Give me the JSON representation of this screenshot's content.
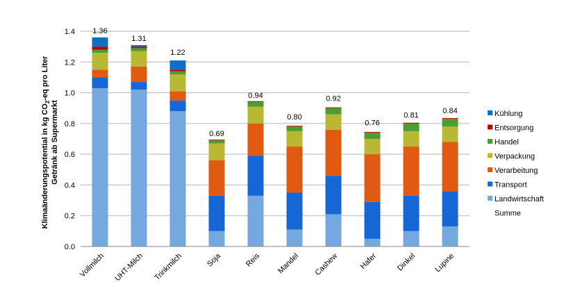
{
  "chart_data": {
    "type": "bar",
    "stacked": true,
    "title": "",
    "ylabel_line1": "Klimaänderungspotential in kg CO",
    "ylabel_sub": "2",
    "ylabel_line1_end": "-eq pro Liter",
    "ylabel_line2": "Getränk ab Supermarkt",
    "xlabel": "",
    "ylim": [
      0,
      1.4
    ],
    "yticks": [
      "0.0",
      "0.2",
      "0.4",
      "0.6",
      "0.8",
      "1.0",
      "1.2",
      "1.4"
    ],
    "grid": true,
    "legend_position": "right",
    "categories": [
      "Vollmilch",
      "UHT-Milch",
      "Trinkmilch",
      "Soja",
      "Reis",
      "Mandel",
      "Cashew",
      "Hafer",
      "Dinkel",
      "Lupine"
    ],
    "totals": [
      "1.36",
      "1.31",
      "1.22",
      "0.69",
      "0.94",
      "0.80",
      "0.92",
      "0.76",
      "0.81",
      "0.84"
    ],
    "series": [
      {
        "name": "Landwirtschaft",
        "color": "#74a9e0",
        "values": [
          1.03,
          1.02,
          0.88,
          0.1,
          0.33,
          0.11,
          0.21,
          0.05,
          0.1,
          0.13
        ]
      },
      {
        "name": "Transport",
        "color": "#1766d6",
        "values": [
          0.07,
          0.05,
          0.07,
          0.23,
          0.26,
          0.24,
          0.25,
          0.24,
          0.23,
          0.23
        ]
      },
      {
        "name": "Verarbeitung",
        "color": "#e05a12",
        "values": [
          0.05,
          0.1,
          0.06,
          0.23,
          0.21,
          0.3,
          0.3,
          0.31,
          0.32,
          0.32
        ]
      },
      {
        "name": "Verpackung",
        "color": "#b9b834",
        "values": [
          0.11,
          0.1,
          0.11,
          0.11,
          0.11,
          0.1,
          0.1,
          0.1,
          0.1,
          0.1
        ]
      },
      {
        "name": "Handel",
        "color": "#4c9e33",
        "values": [
          0.02,
          0.02,
          0.02,
          0.02,
          0.03,
          0.03,
          0.04,
          0.04,
          0.05,
          0.05
        ]
      },
      {
        "name": "Entsorgung",
        "color": "#c00000",
        "values": [
          0.02,
          0.01,
          0.01,
          0.005,
          0.005,
          0.005,
          0.005,
          0.005,
          0.005,
          0.005
        ]
      },
      {
        "name": "Kühlung",
        "color": "#0f6fc6",
        "values": [
          0.06,
          0.01,
          0.06,
          0.0,
          0.0,
          0.0,
          0.0,
          0.0,
          0.0,
          0.0
        ]
      }
    ],
    "legend": [
      "Kühlung",
      "Entsorgung",
      "Handel",
      "Verpackung",
      "Verarbeitung",
      "Transport",
      "Landwirtschaft",
      "Summe"
    ],
    "legend_colors": [
      "#0f6fc6",
      "#c00000",
      "#4c9e33",
      "#b9b834",
      "#e05a12",
      "#1766d6",
      "#74a9e0",
      ""
    ]
  }
}
